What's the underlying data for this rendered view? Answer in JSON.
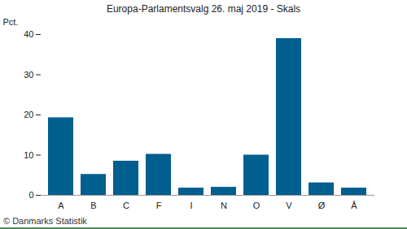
{
  "chart_data": {
    "type": "bar",
    "title": "Europa-Parlamentsvalg 26. maj 2019 - Skals",
    "y_label": "Pct.",
    "caption": "© Danmarks Statistik",
    "categories": [
      "A",
      "B",
      "C",
      "F",
      "I",
      "N",
      "O",
      "V",
      "Ø",
      "Å"
    ],
    "values": [
      19.3,
      5.2,
      8.5,
      10.2,
      1.8,
      2.0,
      10.0,
      39.0,
      3.1,
      1.8
    ],
    "color": "#005f8f",
    "ylim": [
      0,
      40
    ],
    "yticks": [
      0,
      10,
      20,
      30,
      40
    ],
    "grid": false
  }
}
